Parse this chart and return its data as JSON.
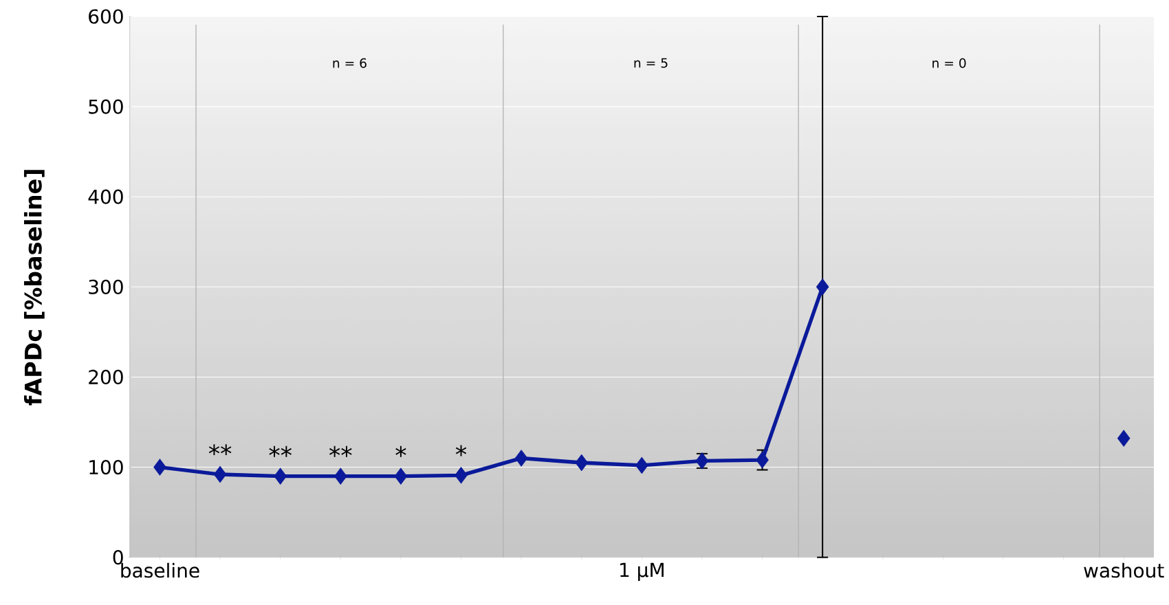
{
  "chart_data": {
    "type": "line",
    "ylabel": "fAPDc [%baseline]",
    "categories": [
      "baseline",
      null,
      null,
      null,
      null,
      null,
      null,
      null,
      "1 µM",
      null,
      null,
      null,
      null,
      null,
      null,
      null,
      "washout"
    ],
    "values": [
      100,
      92,
      90,
      90,
      90,
      91,
      110,
      105,
      102,
      107,
      108,
      300,
      null,
      null,
      null,
      null,
      132
    ],
    "value_labels": [
      null,
      "**",
      "**",
      "**",
      "*",
      "*",
      null,
      null,
      null,
      null,
      null,
      null,
      null,
      null,
      null,
      null,
      null
    ],
    "errors": [
      null,
      null,
      null,
      null,
      null,
      null,
      null,
      null,
      null,
      8,
      11,
      300,
      null,
      null,
      null,
      null,
      null
    ],
    "color": "#0a1a9a",
    "marker": "diamond",
    "line_style": "solid",
    "ylim": [
      0,
      600
    ],
    "yticks": [
      0,
      100,
      200,
      300,
      400,
      500,
      600
    ],
    "grid": "y",
    "annotations": [
      "n = 6",
      "n = 5",
      "n = 0"
    ]
  }
}
